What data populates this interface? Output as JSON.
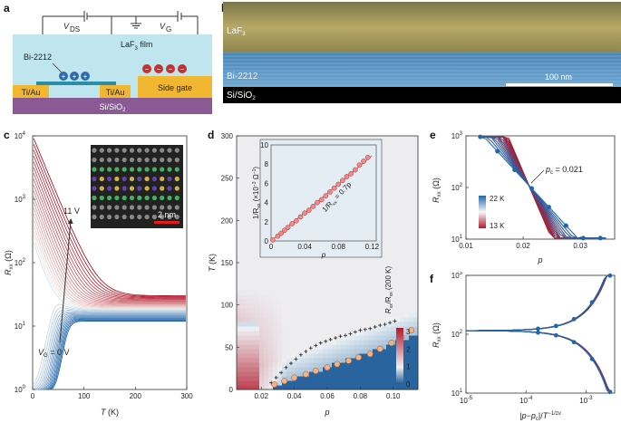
{
  "colors": {
    "red": "#b2182b",
    "blue": "#2166ac",
    "orange": "#f4b183",
    "circuitBg": "#bfe6ef",
    "substrate": "#8a5a95",
    "gold": "#f2b731"
  },
  "panel_a": {
    "label": "a",
    "vds": "V",
    "vds_sub": "DS",
    "vg": "V",
    "vg_sub": "G",
    "film": "LaF",
    "film_sub": "3",
    "film_suffix": " film",
    "material": "Bi-2212",
    "contact_left": "Ti/Au",
    "contact_right": "Ti/Au",
    "side_gate": "Side gate",
    "substrate": "Si/SiO",
    "substrate_sub": "2",
    "plus": "+",
    "minus": "−"
  },
  "panel_b": {
    "label": "b",
    "top": "LaF",
    "top_sub": "3",
    "middle": "Bi-2212",
    "bottom": "Si/SiO",
    "bottom_sub": "2",
    "scale": "100 nm"
  },
  "panel_c": {
    "label": "c",
    "scale": "2 nm",
    "top_annot": "11 V",
    "bot_annot": "V",
    "bot_annot_sub": "G",
    "bot_annot_val": " = 0 V"
  },
  "panel_d": {
    "label": "d",
    "legend_title": "R",
    "legend_sub": "xx",
    "legend_rest": "/R",
    "legend_sub2": "xx",
    "legend_tail": " (200 K)",
    "inset_fit": "1/R",
    "inset_fit_sub": "xx",
    "inset_fit_val": " = 0.7p"
  },
  "panel_e": {
    "label": "e",
    "pc": "p",
    "pc_sub": "c",
    "pc_val": " = 0.021",
    "cb_hi": "22 K",
    "cb_lo": "13 K"
  },
  "panel_f": {
    "label": "f"
  },
  "chart_data": [
    {
      "panel": "c",
      "type": "line",
      "title": "",
      "xlabel": "T (K)",
      "ylabel": "R_xx (Ω)",
      "xlim": [
        0,
        300
      ],
      "ylim_log": [
        1,
        10000
      ],
      "yscale": "log",
      "x_ticks": [
        "0",
        "100",
        "200",
        "300"
      ],
      "y_ticks": [
        "10^0",
        "10^1",
        "10^2",
        "10^3",
        "10^4"
      ],
      "series_note": "gate-voltage sweep from V_G = 0 V (blue) to 11 V (red)",
      "series": [
        {
          "name": "V_G = 0 V",
          "rhigh": 1.0,
          "rlow": 12
        },
        {
          "name": "V_G = 11 V",
          "rhigh": 4000,
          "rlow": 30
        }
      ]
    },
    {
      "panel": "d",
      "type": "heatmap",
      "xlabel": "p",
      "ylabel": "T (K)",
      "xlim": [
        0.005,
        0.115
      ],
      "ylim": [
        0,
        300
      ],
      "x_ticks": [
        "0.02",
        "0.04",
        "0.06",
        "0.08",
        "0.10"
      ],
      "y_ticks": [
        "0",
        "50",
        "100",
        "150",
        "200",
        "250",
        "300"
      ],
      "colorbar": {
        "label": "R_xx/R_xx (200 K)",
        "ticks": [
          "0",
          "1",
          "2",
          "3"
        ],
        "range": [
          0,
          3.2
        ]
      },
      "tc_circles": [
        [
          0.028,
          6
        ],
        [
          0.034,
          10
        ],
        [
          0.04,
          14
        ],
        [
          0.047,
          18
        ],
        [
          0.053,
          22
        ],
        [
          0.06,
          26
        ],
        [
          0.066,
          30
        ],
        [
          0.073,
          34
        ],
        [
          0.079,
          38
        ],
        [
          0.086,
          42
        ],
        [
          0.092,
          48
        ],
        [
          0.099,
          55
        ],
        [
          0.105,
          62
        ],
        [
          0.111,
          70
        ]
      ],
      "crosses": [
        [
          0.026,
          8
        ],
        [
          0.029,
          14
        ],
        [
          0.032,
          20
        ],
        [
          0.035,
          26
        ],
        [
          0.038,
          31
        ],
        [
          0.041,
          36
        ],
        [
          0.044,
          41
        ],
        [
          0.047,
          45
        ],
        [
          0.05,
          49
        ],
        [
          0.053,
          52
        ],
        [
          0.056,
          55
        ],
        [
          0.059,
          57
        ],
        [
          0.062,
          59
        ],
        [
          0.065,
          61
        ],
        [
          0.068,
          63
        ],
        [
          0.071,
          64
        ],
        [
          0.074,
          66
        ],
        [
          0.077,
          68
        ],
        [
          0.08,
          70
        ],
        [
          0.083,
          71
        ],
        [
          0.086,
          72
        ],
        [
          0.089,
          74
        ],
        [
          0.092,
          76
        ],
        [
          0.095,
          77
        ],
        [
          0.098,
          79
        ],
        [
          0.101,
          81
        ]
      ],
      "inset": {
        "xlabel": "p",
        "ylabel": "1/R_xx (×10^-3 Ω^-1)",
        "xlim": [
          0,
          0.125
        ],
        "ylim": [
          0,
          10
        ],
        "x_ticks": [
          "0",
          "0.04",
          "0.08",
          "0.12"
        ],
        "y_ticks": [
          "0",
          "2",
          "4",
          "6",
          "8",
          "10"
        ],
        "fit_slope_label": "1/R_xx = 0.7p",
        "points": [
          [
            0.002,
            0.1
          ],
          [
            0.008,
            0.5
          ],
          [
            0.012,
            0.8
          ],
          [
            0.016,
            1.1
          ],
          [
            0.02,
            1.4
          ],
          [
            0.025,
            1.8
          ],
          [
            0.03,
            2.1
          ],
          [
            0.035,
            2.5
          ],
          [
            0.04,
            2.9
          ],
          [
            0.045,
            3.2
          ],
          [
            0.05,
            3.6
          ],
          [
            0.055,
            4.0
          ],
          [
            0.06,
            4.3
          ],
          [
            0.065,
            4.7
          ],
          [
            0.07,
            5.1
          ],
          [
            0.075,
            5.5
          ],
          [
            0.08,
            5.9
          ],
          [
            0.085,
            6.3
          ],
          [
            0.09,
            6.7
          ],
          [
            0.095,
            7.0
          ],
          [
            0.1,
            7.4
          ],
          [
            0.105,
            7.9
          ],
          [
            0.11,
            8.3
          ],
          [
            0.115,
            8.7
          ]
        ]
      }
    },
    {
      "panel": "e",
      "type": "line",
      "xlabel": "p",
      "ylabel": "R_xx (Ω)",
      "xlim": [
        0.01,
        0.036
      ],
      "ylim_log": [
        10,
        1000
      ],
      "yscale": "log",
      "x_ticks": [
        "0.01",
        "0.02",
        "0.03"
      ],
      "y_ticks": [
        "10^1",
        "10^2",
        "10^3"
      ],
      "crossing": {
        "p": 0.021,
        "R": 110
      },
      "temperatures_K": [
        13,
        22
      ]
    },
    {
      "panel": "f",
      "type": "line",
      "xlabel": "|p−p_c|/T^-1/zν",
      "ylabel": "R_xx (Ω)",
      "xscale": "log",
      "yscale": "log",
      "xlim_log": [
        1e-05,
        0.003
      ],
      "ylim_log": [
        10,
        1000
      ],
      "x_ticks": [
        "10^-5",
        "10^-4",
        "10^-3"
      ],
      "y_ticks": [
        "10^1",
        "10^2",
        "10^3"
      ],
      "note": "scaling collapse onto two branches"
    }
  ]
}
